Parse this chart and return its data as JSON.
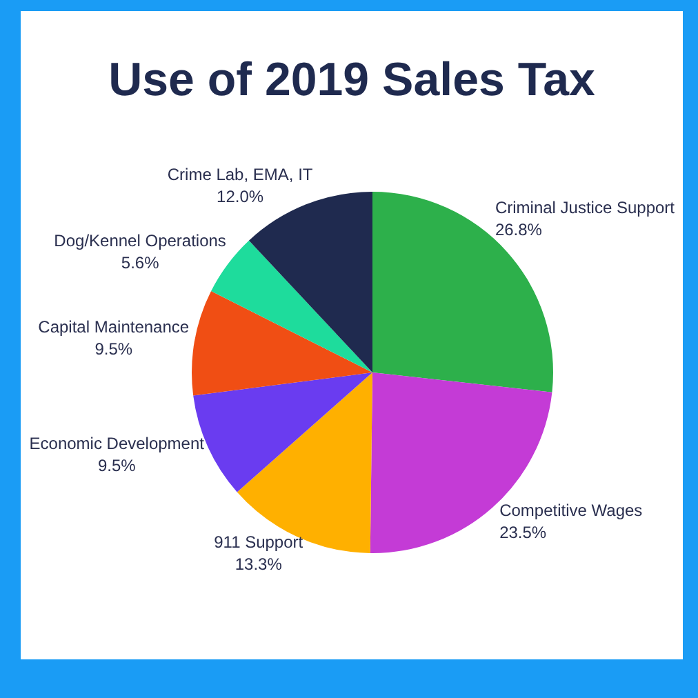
{
  "chart_data": {
    "type": "pie",
    "title": "Use of 2019 Sales Tax",
    "categories": [
      "Criminal Justice Support",
      "Competitive Wages",
      "911 Support",
      "Economic Development",
      "Capital Maintenance",
      "Dog/Kennel Operations",
      "Crime Lab, EMA, IT"
    ],
    "values": [
      26.8,
      23.5,
      13.3,
      9.5,
      9.5,
      5.6,
      12.0
    ],
    "value_labels": [
      "26.8%",
      "23.5%",
      "13.3%",
      "9.5%",
      "9.5%",
      "5.6%",
      "12.0%"
    ],
    "colors": [
      "#2db04b",
      "#c43bd6",
      "#ffb000",
      "#6a3cf0",
      "#f04e14",
      "#1edc9c",
      "#1f2a4f"
    ],
    "legend": false
  }
}
